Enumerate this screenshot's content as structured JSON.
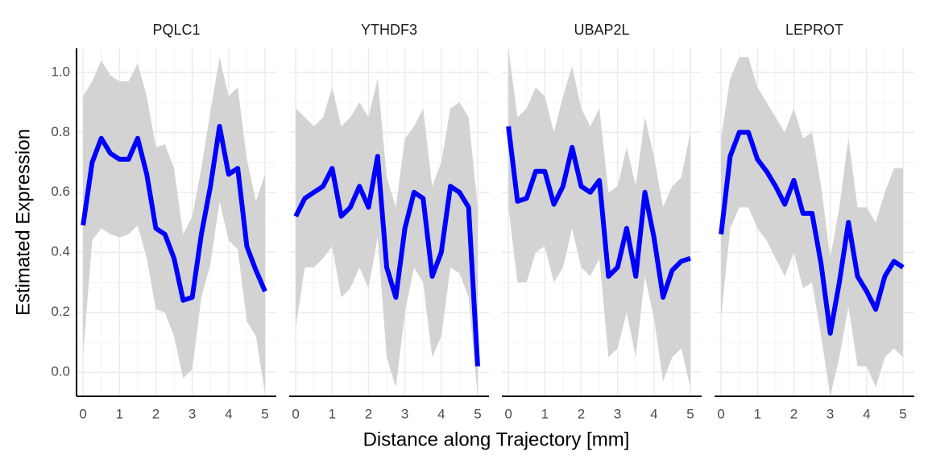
{
  "xlabel": "Distance along Trajectory [mm]",
  "ylabel": "Estimated Expression",
  "ylim": [
    -0.08,
    1.08
  ],
  "yticks": [
    {
      "value": 0,
      "label": "0.0"
    },
    0.2,
    0.4,
    0.6,
    0.8,
    {
      "value": 1,
      "label": "1.0"
    }
  ],
  "chart_data": [
    {
      "type": "line",
      "title": "PQLC1",
      "color": "#0000ff",
      "band_color": "#d3d3d3",
      "xlim": [
        -0.18,
        5.31
      ],
      "xticks": [
        0,
        1,
        2,
        3,
        4,
        5
      ],
      "x": [
        0,
        0.25,
        0.5,
        0.75,
        1,
        1.25,
        1.5,
        1.75,
        2,
        2.25,
        2.5,
        2.75,
        3,
        3.25,
        3.5,
        3.75,
        4,
        4.25,
        4.5,
        4.75,
        5
      ],
      "values": [
        0.49,
        0.7,
        0.78,
        0.73,
        0.71,
        0.71,
        0.78,
        0.66,
        0.48,
        0.46,
        0.38,
        0.24,
        0.25,
        0.46,
        0.62,
        0.82,
        0.66,
        0.68,
        0.42,
        0.34,
        0.27
      ],
      "upper": [
        0.92,
        0.97,
        1.04,
        0.99,
        0.97,
        0.97,
        1.03,
        0.92,
        0.75,
        0.76,
        0.68,
        0.46,
        0.52,
        0.68,
        0.87,
        1.05,
        0.92,
        0.95,
        0.71,
        0.57,
        0.66
      ],
      "lower": [
        0.06,
        0.44,
        0.48,
        0.46,
        0.45,
        0.46,
        0.49,
        0.38,
        0.21,
        0.2,
        0.12,
        -0.02,
        0.01,
        0.25,
        0.36,
        0.57,
        0.44,
        0.41,
        0.17,
        0.12,
        -0.07
      ]
    },
    {
      "type": "line",
      "title": "YTHDF3",
      "color": "#0000ff",
      "band_color": "#d3d3d3",
      "xlim": [
        -0.18,
        5.31
      ],
      "xticks": [
        0,
        1,
        2,
        3,
        4,
        5
      ],
      "x": [
        0,
        0.25,
        0.5,
        0.75,
        1,
        1.25,
        1.5,
        1.75,
        2,
        2.25,
        2.5,
        2.75,
        3,
        3.25,
        3.5,
        3.75,
        4,
        4.25,
        4.5,
        4.75,
        5
      ],
      "values": [
        0.52,
        0.58,
        0.6,
        0.62,
        0.68,
        0.52,
        0.55,
        0.62,
        0.55,
        0.72,
        0.35,
        0.25,
        0.48,
        0.6,
        0.58,
        0.32,
        0.4,
        0.62,
        0.6,
        0.55,
        0.02
      ],
      "upper": [
        0.88,
        0.85,
        0.82,
        0.85,
        0.95,
        0.82,
        0.85,
        0.9,
        0.85,
        0.98,
        0.65,
        0.55,
        0.78,
        0.82,
        0.88,
        0.62,
        0.7,
        0.88,
        0.9,
        0.85,
        0.55
      ],
      "lower": [
        0.15,
        0.35,
        0.35,
        0.38,
        0.42,
        0.25,
        0.28,
        0.35,
        0.28,
        0.45,
        0.05,
        -0.05,
        0.2,
        0.35,
        0.3,
        0.05,
        0.12,
        0.35,
        0.33,
        0.25,
        -0.08
      ]
    },
    {
      "type": "line",
      "title": "UBAP2L",
      "color": "#0000ff",
      "band_color": "#d3d3d3",
      "xlim": [
        -0.18,
        5.31
      ],
      "xticks": [
        0,
        1,
        2,
        3,
        4,
        5
      ],
      "x": [
        0,
        0.25,
        0.5,
        0.75,
        1,
        1.25,
        1.5,
        1.75,
        2,
        2.25,
        2.5,
        2.75,
        3,
        3.25,
        3.5,
        3.75,
        4,
        4.25,
        4.5,
        4.75,
        5
      ],
      "values": [
        0.82,
        0.57,
        0.58,
        0.67,
        0.67,
        0.56,
        0.62,
        0.75,
        0.62,
        0.6,
        0.64,
        0.32,
        0.35,
        0.48,
        0.32,
        0.6,
        0.45,
        0.25,
        0.34,
        0.37,
        0.38
      ],
      "upper": [
        1.08,
        0.85,
        0.88,
        0.95,
        0.92,
        0.8,
        0.92,
        1.02,
        0.88,
        0.82,
        0.88,
        0.6,
        0.62,
        0.75,
        0.62,
        0.85,
        0.72,
        0.55,
        0.62,
        0.65,
        0.8
      ],
      "lower": [
        0.55,
        0.3,
        0.3,
        0.4,
        0.42,
        0.3,
        0.35,
        0.48,
        0.35,
        0.32,
        0.38,
        0.05,
        0.08,
        0.2,
        0.05,
        0.32,
        0.18,
        -0.03,
        0.05,
        0.08,
        -0.05
      ]
    },
    {
      "type": "line",
      "title": "LEPROT",
      "color": "#0000ff",
      "band_color": "#d3d3d3",
      "xlim": [
        -0.18,
        5.31
      ],
      "xticks": [
        0,
        1,
        2,
        3,
        4,
        5
      ],
      "x": [
        0,
        0.25,
        0.5,
        0.75,
        1,
        1.25,
        1.5,
        1.75,
        2,
        2.25,
        2.5,
        2.75,
        3,
        3.25,
        3.5,
        3.75,
        4,
        4.25,
        4.5,
        4.75,
        5
      ],
      "values": [
        0.46,
        0.72,
        0.8,
        0.8,
        0.71,
        0.67,
        0.62,
        0.56,
        0.64,
        0.53,
        0.53,
        0.36,
        0.13,
        0.3,
        0.5,
        0.32,
        0.27,
        0.21,
        0.32,
        0.37,
        0.35
      ],
      "upper": [
        0.78,
        0.98,
        1.05,
        1.05,
        0.95,
        0.9,
        0.85,
        0.8,
        0.88,
        0.78,
        0.8,
        0.62,
        0.38,
        0.55,
        0.78,
        0.55,
        0.55,
        0.5,
        0.6,
        0.68,
        0.68
      ],
      "lower": [
        0.18,
        0.48,
        0.55,
        0.55,
        0.48,
        0.44,
        0.38,
        0.32,
        0.4,
        0.28,
        0.3,
        0.12,
        -0.08,
        0.05,
        0.22,
        0.02,
        0.02,
        -0.05,
        0.05,
        0.08,
        0.05
      ]
    }
  ]
}
